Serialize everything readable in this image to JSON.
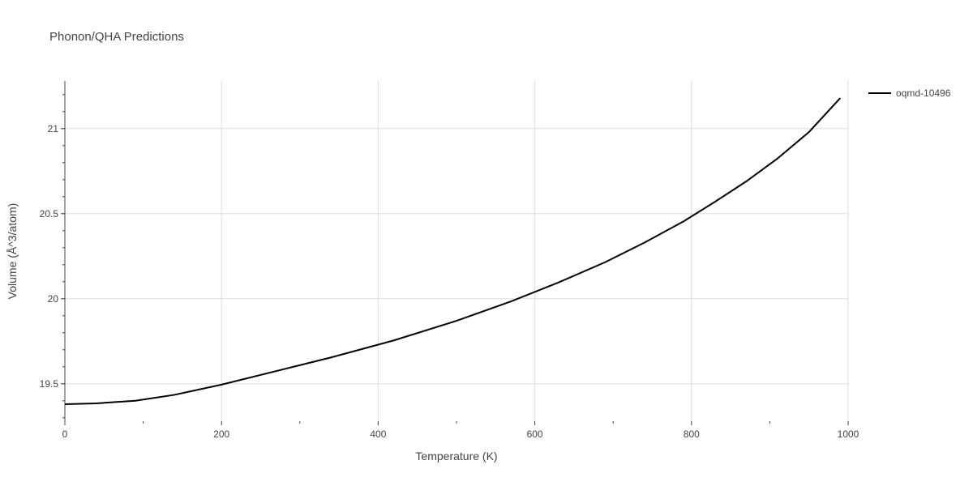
{
  "chart_data": {
    "type": "line",
    "title": "Phonon/QHA Predictions",
    "xlabel": "Temperature (K)",
    "ylabel": "Volume (Å^3/atom)",
    "xlim": [
      0,
      1000
    ],
    "ylim": [
      19.28,
      21.28
    ],
    "x_ticks": [
      0,
      200,
      400,
      600,
      800,
      1000
    ],
    "y_ticks": [
      19.5,
      20,
      20.5,
      21
    ],
    "y_tick_labels": [
      "19.5",
      "20",
      "20.5",
      "21"
    ],
    "grid": true,
    "legend_position": "top-right",
    "series": [
      {
        "name": "oqmd-10496",
        "color": "#000000",
        "x": [
          0,
          40,
          90,
          140,
          200,
          270,
          340,
          420,
          500,
          570,
          630,
          690,
          740,
          790,
          830,
          870,
          910,
          950,
          990
        ],
        "y": [
          19.38,
          19.385,
          19.4,
          19.435,
          19.495,
          19.575,
          19.655,
          19.755,
          19.87,
          19.985,
          20.095,
          20.215,
          20.33,
          20.455,
          20.57,
          20.69,
          20.825,
          20.98,
          21.18
        ]
      }
    ]
  }
}
